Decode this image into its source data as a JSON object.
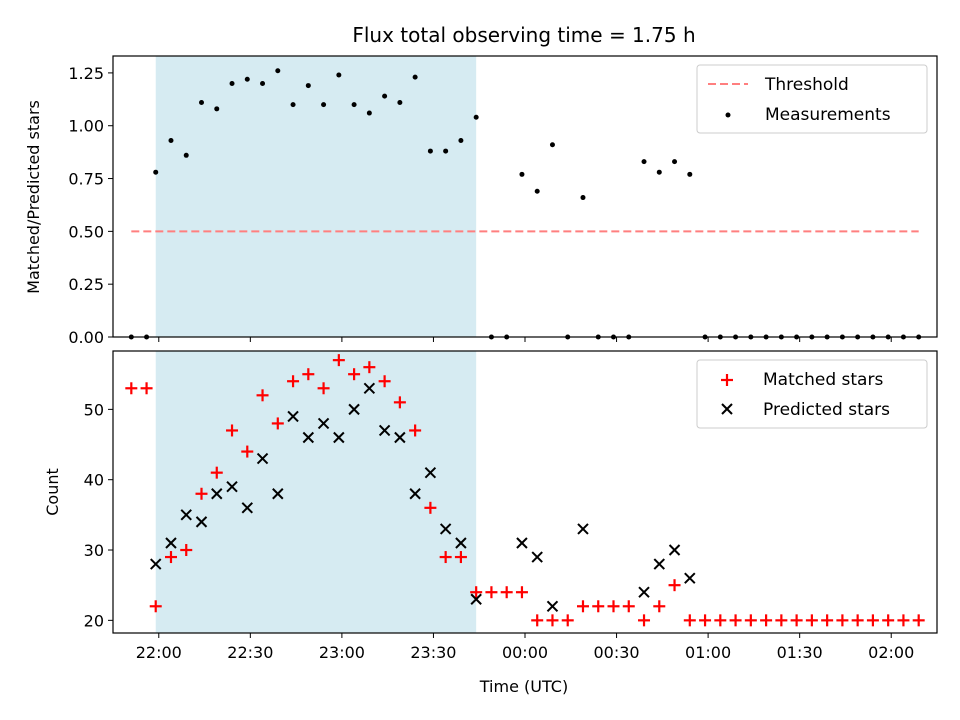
{
  "title": "Flux total observing time = 1.75 h",
  "colors": {
    "shade": "#add8e6",
    "threshold": "#ff7f7f",
    "measurement": "#000000",
    "matched": "#ff0000",
    "predicted": "#000000"
  },
  "chart_data": [
    {
      "type": "scatter",
      "panel": "top",
      "ylabel": "Matched/Predicted stars",
      "xlabel": "",
      "ylim": [
        0,
        1.33
      ],
      "yticks": [
        0.0,
        0.25,
        0.5,
        0.75,
        1.0,
        1.25
      ],
      "ytick_labels": [
        "0.00",
        "0.25",
        "0.50",
        "0.75",
        "1.00",
        "1.25"
      ],
      "xlim": [
        "21:45",
        "02:15"
      ],
      "xticks": [
        "22:00",
        "22:30",
        "23:00",
        "23:30",
        "00:00",
        "00:30",
        "01:00",
        "01:30",
        "02:00"
      ],
      "shaded_interval": [
        "21:59",
        "23:44"
      ],
      "legend": {
        "position": "top-right",
        "entries": [
          "Threshold",
          "Measurements"
        ]
      },
      "threshold": {
        "name": "Threshold",
        "value": 0.5,
        "x_range": [
          "21:51",
          "02:09"
        ]
      },
      "series": [
        {
          "name": "Measurements",
          "x": [
            "21:51",
            "21:56",
            "21:59",
            "22:04",
            "22:09",
            "22:14",
            "22:19",
            "22:24",
            "22:29",
            "22:34",
            "22:39",
            "22:44",
            "22:49",
            "22:54",
            "22:59",
            "23:04",
            "23:09",
            "23:14",
            "23:19",
            "23:24",
            "23:29",
            "23:34",
            "23:39",
            "23:44",
            "23:49",
            "23:54",
            "23:59",
            "00:04",
            "00:09",
            "00:14",
            "00:19",
            "00:24",
            "00:29",
            "00:34",
            "00:39",
            "00:44",
            "00:49",
            "00:54",
            "00:59",
            "01:04",
            "01:09",
            "01:14",
            "01:19",
            "01:24",
            "01:29",
            "01:34",
            "01:39",
            "01:44",
            "01:49",
            "01:54",
            "01:59",
            "02:04",
            "02:09"
          ],
          "y": [
            0.0,
            0.0,
            0.78,
            0.93,
            0.86,
            1.11,
            1.08,
            1.2,
            1.22,
            1.2,
            1.26,
            1.1,
            1.19,
            1.1,
            1.24,
            1.1,
            1.06,
            1.14,
            1.11,
            1.23,
            0.88,
            0.88,
            0.93,
            1.04,
            0.0,
            0.0,
            0.77,
            0.69,
            0.91,
            0.0,
            0.66,
            0.0,
            0.0,
            0.0,
            0.83,
            0.78,
            0.83,
            0.77,
            0.0,
            0.0,
            0.0,
            0.0,
            0.0,
            0.0,
            0.0,
            0.0,
            0.0,
            0.0,
            0.0,
            0.0,
            0.0,
            0.0,
            0.0
          ]
        }
      ]
    },
    {
      "type": "scatter",
      "panel": "bottom",
      "ylabel": "Count",
      "xlabel": "Time (UTC)",
      "ylim": [
        18.2,
        58.3
      ],
      "yticks": [
        20,
        30,
        40,
        50
      ],
      "ytick_labels": [
        "20",
        "30",
        "40",
        "50"
      ],
      "xlim": [
        "21:45",
        "02:15"
      ],
      "xticks": [
        "22:00",
        "22:30",
        "23:00",
        "23:30",
        "00:00",
        "00:30",
        "01:00",
        "01:30",
        "02:00"
      ],
      "shaded_interval": [
        "21:59",
        "23:44"
      ],
      "legend": {
        "position": "top-right",
        "entries": [
          "Matched stars",
          "Predicted stars"
        ]
      },
      "series": [
        {
          "name": "Matched stars",
          "marker": "plus",
          "x": [
            "21:51",
            "21:56",
            "21:59",
            "22:04",
            "22:09",
            "22:14",
            "22:19",
            "22:24",
            "22:29",
            "22:34",
            "22:39",
            "22:44",
            "22:49",
            "22:54",
            "22:59",
            "23:04",
            "23:09",
            "23:14",
            "23:19",
            "23:24",
            "23:29",
            "23:34",
            "23:39",
            "23:44",
            "23:49",
            "23:54",
            "23:59",
            "00:04",
            "00:09",
            "00:14",
            "00:19",
            "00:24",
            "00:29",
            "00:34",
            "00:39",
            "00:44",
            "00:49",
            "00:54",
            "00:59",
            "01:04",
            "01:09",
            "01:14",
            "01:19",
            "01:24",
            "01:29",
            "01:34",
            "01:39",
            "01:44",
            "01:49",
            "01:54",
            "01:59",
            "02:04",
            "02:09"
          ],
          "y": [
            53,
            53,
            22,
            29,
            30,
            38,
            41,
            47,
            44,
            52,
            48,
            54,
            55,
            53,
            57,
            55,
            56,
            54,
            51,
            47,
            36,
            29,
            29,
            24,
            24,
            24,
            24,
            20,
            20,
            20,
            22,
            22,
            22,
            22,
            20,
            22,
            25,
            20,
            20,
            20,
            20,
            20,
            20,
            20,
            20,
            20,
            20,
            20,
            20,
            20,
            20,
            20,
            20
          ]
        },
        {
          "name": "Predicted stars",
          "marker": "x",
          "x": [
            "21:59",
            "22:04",
            "22:09",
            "22:14",
            "22:19",
            "22:24",
            "22:29",
            "22:34",
            "22:39",
            "22:44",
            "22:49",
            "22:54",
            "22:59",
            "23:04",
            "23:09",
            "23:14",
            "23:19",
            "23:24",
            "23:29",
            "23:34",
            "23:39",
            "23:44",
            "23:59",
            "00:04",
            "00:09",
            "00:19",
            "00:39",
            "00:44",
            "00:49",
            "00:54"
          ],
          "y": [
            28,
            31,
            35,
            34,
            38,
            39,
            36,
            43,
            38,
            49,
            46,
            48,
            46,
            50,
            53,
            47,
            46,
            38,
            41,
            33,
            31,
            23,
            31,
            29,
            22,
            33,
            24,
            28,
            30,
            26
          ]
        }
      ]
    }
  ]
}
